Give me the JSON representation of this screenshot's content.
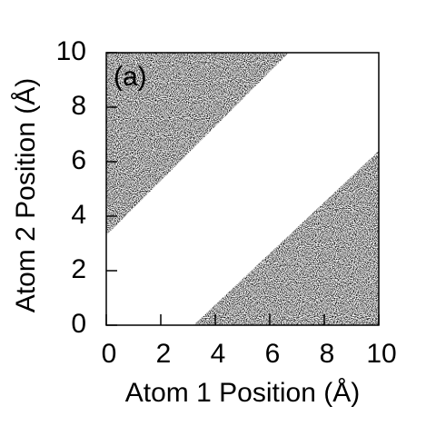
{
  "chart_data": {
    "type": "region",
    "xlabel": "Atom 1 Position (Å)",
    "ylabel": "Atom 2 Position (Å)",
    "annotation": "(a)",
    "regions": [
      {
        "x": [
          0,
          0,
          6.7
        ],
        "y": [
          3.3,
          10,
          10
        ]
      },
      {
        "x": [
          3.2,
          10,
          10
        ],
        "y": [
          0,
          0,
          6.4
        ]
      }
    ],
    "color": "#000000",
    "xlim": [
      0,
      10
    ],
    "ylim": [
      0,
      10
    ],
    "xticks": [
      0,
      2,
      4,
      6,
      8,
      10
    ],
    "yticks": [
      0,
      2,
      4,
      6,
      8,
      10
    ]
  }
}
